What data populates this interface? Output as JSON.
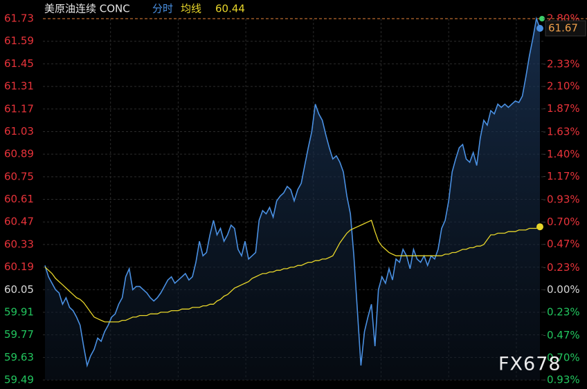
{
  "chart_data": {
    "type": "line",
    "title": "美原油连续 CONC",
    "watermark": "FX678",
    "grid": true,
    "ylim": [
      59.49,
      61.73
    ],
    "yticks": [
      61.73,
      61.59,
      61.45,
      61.31,
      61.17,
      61.03,
      60.89,
      60.75,
      60.61,
      60.47,
      60.33,
      60.19,
      60.05,
      59.91,
      59.77,
      59.63,
      59.49
    ],
    "y2lim": [
      -0.93,
      2.8
    ],
    "y2ticks": [
      {
        "value": 2.8,
        "label": "2.80%"
      },
      {
        "value": 2.33,
        "label": "2.33%"
      },
      {
        "value": 2.1,
        "label": "2.10%"
      },
      {
        "value": 1.87,
        "label": "1.87%"
      },
      {
        "value": 1.63,
        "label": "1.63%"
      },
      {
        "value": 1.4,
        "label": "1.40%"
      },
      {
        "value": 1.17,
        "label": "1.17%"
      },
      {
        "value": 0.93,
        "label": "0.93%"
      },
      {
        "value": 0.7,
        "label": "0.70%"
      },
      {
        "value": 0.47,
        "label": "0.47%"
      },
      {
        "value": 0.23,
        "label": "0.23%"
      },
      {
        "value": 0,
        "label": "0.00%"
      },
      {
        "value": -0.23,
        "label": "0.23%"
      },
      {
        "value": -0.47,
        "label": "0.47%"
      },
      {
        "value": -0.7,
        "label": "0.70%"
      },
      {
        "value": -0.93,
        "label": "0.93%"
      }
    ],
    "up_color": "#e8333a",
    "down_color": "#22c55e",
    "series": [
      {
        "name": "分时",
        "color": "#4a90e2",
        "values": [
          60.2,
          60.13,
          60.09,
          60.05,
          60.03,
          59.96,
          60.0,
          59.94,
          59.92,
          59.88,
          59.83,
          59.7,
          59.58,
          59.64,
          59.68,
          59.75,
          59.73,
          59.79,
          59.83,
          59.88,
          59.9,
          59.96,
          60.0,
          60.13,
          60.18,
          60.05,
          60.07,
          60.07,
          60.05,
          60.03,
          60.0,
          59.98,
          60.0,
          60.03,
          60.07,
          60.11,
          60.13,
          60.09,
          60.11,
          60.13,
          60.15,
          60.11,
          60.13,
          60.22,
          60.35,
          60.26,
          60.28,
          60.39,
          60.48,
          60.39,
          60.43,
          60.35,
          60.39,
          60.45,
          60.43,
          60.3,
          60.26,
          60.35,
          60.24,
          60.26,
          60.28,
          60.48,
          60.54,
          60.52,
          60.56,
          60.5,
          60.6,
          60.63,
          60.65,
          60.69,
          60.67,
          60.6,
          60.67,
          60.71,
          60.82,
          60.93,
          61.03,
          61.2,
          61.14,
          61.1,
          61.01,
          60.93,
          60.86,
          60.88,
          60.84,
          60.78,
          60.63,
          60.52,
          60.26,
          59.92,
          59.58,
          59.79,
          59.88,
          59.96,
          59.7,
          60.05,
          60.13,
          60.09,
          60.18,
          60.11,
          60.24,
          60.22,
          60.3,
          60.26,
          60.18,
          60.3,
          60.24,
          60.22,
          60.26,
          60.2,
          60.26,
          60.24,
          60.3,
          60.43,
          60.48,
          60.6,
          60.78,
          60.86,
          60.93,
          60.95,
          60.86,
          60.84,
          60.9,
          60.82,
          60.99,
          61.1,
          61.07,
          61.16,
          61.14,
          61.2,
          61.18,
          61.2,
          61.18,
          61.2,
          61.22,
          61.21,
          61.25,
          61.37,
          61.5,
          61.61,
          61.73,
          61.67
        ]
      },
      {
        "name": "均线",
        "color": "#e8d62a",
        "values": [
          60.19,
          60.17,
          60.15,
          60.12,
          60.1,
          60.08,
          60.06,
          60.04,
          60.02,
          60.0,
          59.99,
          59.97,
          59.94,
          59.91,
          59.88,
          59.87,
          59.86,
          59.85,
          59.85,
          59.85,
          59.85,
          59.85,
          59.86,
          59.86,
          59.87,
          59.88,
          59.88,
          59.89,
          59.89,
          59.89,
          59.9,
          59.9,
          59.9,
          59.91,
          59.91,
          59.91,
          59.92,
          59.92,
          59.92,
          59.93,
          59.93,
          59.93,
          59.94,
          59.94,
          59.94,
          59.95,
          59.95,
          59.96,
          59.96,
          59.98,
          59.99,
          60.01,
          60.02,
          60.04,
          60.06,
          60.07,
          60.08,
          60.09,
          60.1,
          60.12,
          60.13,
          60.14,
          60.15,
          60.15,
          60.16,
          60.16,
          60.17,
          60.17,
          60.18,
          60.18,
          60.19,
          60.19,
          60.2,
          60.2,
          60.21,
          60.22,
          60.22,
          60.23,
          60.23,
          60.24,
          60.24,
          60.25,
          60.26,
          60.3,
          60.34,
          60.37,
          60.4,
          60.42,
          60.43,
          60.44,
          60.45,
          60.46,
          60.47,
          60.48,
          60.41,
          60.35,
          60.32,
          60.3,
          60.28,
          60.27,
          60.26,
          60.26,
          60.26,
          60.26,
          60.26,
          60.26,
          60.26,
          60.26,
          60.26,
          60.26,
          60.26,
          60.26,
          60.26,
          60.26,
          60.27,
          60.27,
          60.28,
          60.28,
          60.29,
          60.3,
          60.3,
          60.31,
          60.31,
          60.32,
          60.32,
          60.33,
          60.36,
          60.39,
          60.39,
          60.4,
          60.4,
          60.4,
          60.41,
          60.41,
          60.41,
          60.42,
          60.42,
          60.42,
          60.43,
          60.43,
          60.43,
          60.44
        ]
      }
    ]
  }
}
